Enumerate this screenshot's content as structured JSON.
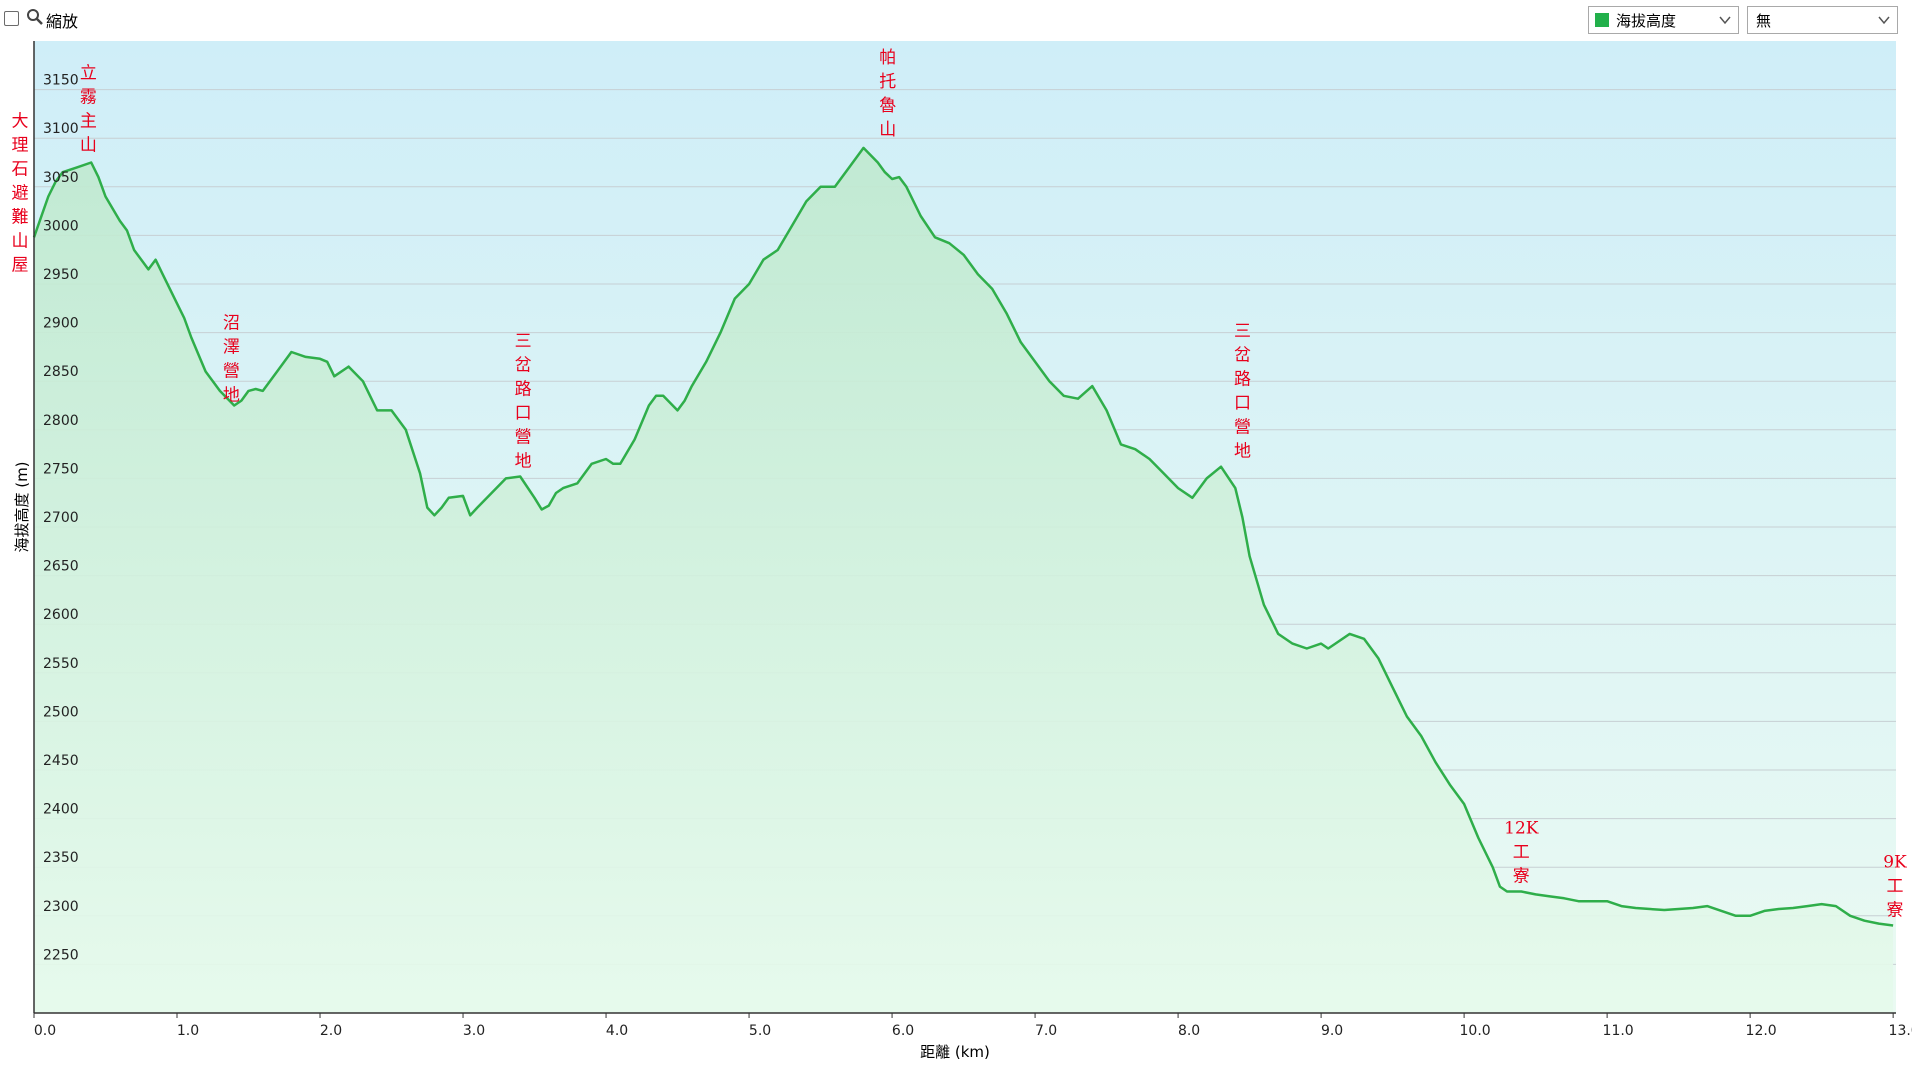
{
  "toolbar": {
    "zoom_label": "縮放",
    "series_select": {
      "value": "海拔高度",
      "swatch_color": "#22b04b"
    },
    "compare_select": {
      "value": "無"
    }
  },
  "colors": {
    "line": "#2fae4a",
    "plot_top": "#cfeef8",
    "plot_bottom": "#e6faea"
  },
  "chart_data": {
    "type": "area",
    "xlabel": "距離  (km)",
    "ylabel": "海拔高度 (m)",
    "xlim": [
      0,
      13.02
    ],
    "ylim": [
      2200,
      3200
    ],
    "x_ticks": [
      "0.0",
      "1.0",
      "2.0",
      "3.0",
      "4.0",
      "5.0",
      "6.0",
      "7.0",
      "8.0",
      "9.0",
      "10.0",
      "11.0",
      "12.0",
      "13.0"
    ],
    "y_ticks": [
      "2250",
      "2300",
      "2350",
      "2400",
      "2450",
      "2500",
      "2550",
      "2600",
      "2650",
      "2700",
      "2750",
      "2800",
      "2850",
      "2900",
      "2950",
      "3000",
      "3050",
      "3100",
      "3150"
    ],
    "grid": true,
    "series": [
      {
        "x": [
          0.0,
          0.1,
          0.15,
          0.2,
          0.3,
          0.4,
          0.45,
          0.5,
          0.6,
          0.65,
          0.7,
          0.8,
          0.85,
          0.9,
          1.0,
          1.05,
          1.1,
          1.2,
          1.25,
          1.3,
          1.4,
          1.45,
          1.5,
          1.55,
          1.6,
          1.7,
          1.8,
          1.9,
          2.0,
          2.05,
          2.1,
          2.2,
          2.3,
          2.4,
          2.5,
          2.6,
          2.7,
          2.75,
          2.8,
          2.85,
          2.9,
          3.0,
          3.05,
          3.1,
          3.2,
          3.3,
          3.4,
          3.5,
          3.55,
          3.6,
          3.65,
          3.7,
          3.8,
          3.9,
          4.0,
          4.05,
          4.1,
          4.2,
          4.3,
          4.35,
          4.4,
          4.5,
          4.55,
          4.6,
          4.7,
          4.8,
          4.9,
          5.0,
          5.1,
          5.2,
          5.3,
          5.4,
          5.5,
          5.6,
          5.7,
          5.8,
          5.9,
          5.95,
          6.0,
          6.05,
          6.1,
          6.2,
          6.3,
          6.4,
          6.5,
          6.6,
          6.7,
          6.8,
          6.9,
          7.0,
          7.1,
          7.2,
          7.3,
          7.4,
          7.5,
          7.6,
          7.7,
          7.8,
          7.9,
          8.0,
          8.1,
          8.2,
          8.3,
          8.4,
          8.45,
          8.5,
          8.6,
          8.7,
          8.8,
          8.9,
          9.0,
          9.05,
          9.1,
          9.2,
          9.3,
          9.4,
          9.5,
          9.6,
          9.7,
          9.8,
          9.9,
          10.0,
          10.1,
          10.2,
          10.25,
          10.3,
          10.35,
          10.4,
          10.5,
          10.6,
          10.7,
          10.8,
          10.9,
          11.0,
          11.1,
          11.2,
          11.3,
          11.4,
          11.5,
          11.6,
          11.7,
          11.8,
          11.9,
          12.0,
          12.1,
          12.2,
          12.3,
          12.4,
          12.5,
          12.6,
          12.7,
          12.8,
          12.9,
          13.0
        ],
        "y": [
          2998,
          3040,
          3055,
          3065,
          3070,
          3075,
          3060,
          3040,
          3015,
          3005,
          2985,
          2965,
          2975,
          2960,
          2930,
          2915,
          2895,
          2860,
          2850,
          2840,
          2825,
          2830,
          2840,
          2842,
          2840,
          2860,
          2880,
          2875,
          2873,
          2870,
          2855,
          2865,
          2850,
          2820,
          2820,
          2800,
          2755,
          2720,
          2712,
          2720,
          2730,
          2732,
          2712,
          2720,
          2735,
          2750,
          2752,
          2730,
          2718,
          2722,
          2735,
          2740,
          2745,
          2765,
          2770,
          2765,
          2765,
          2790,
          2825,
          2835,
          2835,
          2820,
          2830,
          2845,
          2870,
          2900,
          2935,
          2950,
          2975,
          2985,
          3010,
          3035,
          3050,
          3050,
          3070,
          3090,
          3075,
          3065,
          3058,
          3060,
          3050,
          3020,
          2998,
          2992,
          2980,
          2960,
          2945,
          2920,
          2890,
          2870,
          2850,
          2835,
          2832,
          2845,
          2820,
          2785,
          2780,
          2770,
          2755,
          2740,
          2730,
          2750,
          2762,
          2740,
          2710,
          2670,
          2620,
          2590,
          2580,
          2575,
          2580,
          2575,
          2580,
          2590,
          2585,
          2565,
          2535,
          2505,
          2485,
          2458,
          2435,
          2415,
          2380,
          2350,
          2330,
          2325,
          2325,
          2325,
          2322,
          2320,
          2318,
          2315,
          2315,
          2315,
          2310,
          2308,
          2307,
          2306,
          2307,
          2308,
          2310,
          2305,
          2300,
          2300,
          2305,
          2307,
          2308,
          2310,
          2312,
          2310,
          2300,
          2295,
          2292,
          2290
        ]
      }
    ],
    "annotations": [
      {
        "text": "大理石避難山屋",
        "x": 0.0,
        "y": 2998
      },
      {
        "text": "立霧主山",
        "x": 0.38,
        "y": 3077
      },
      {
        "text": "沼澤營地",
        "x": 1.38,
        "y": 2820
      },
      {
        "text": "三岔路口營地",
        "x": 3.42,
        "y": 2752
      },
      {
        "text": "帕托魯山",
        "x": 5.97,
        "y": 3093
      },
      {
        "text": "三岔路口營地",
        "x": 8.45,
        "y": 2762
      },
      {
        "text": "12K工寮",
        "x": 10.4,
        "y": 2325
      },
      {
        "text": "9K工寮",
        "x": 13.0,
        "y": 2290
      }
    ]
  }
}
